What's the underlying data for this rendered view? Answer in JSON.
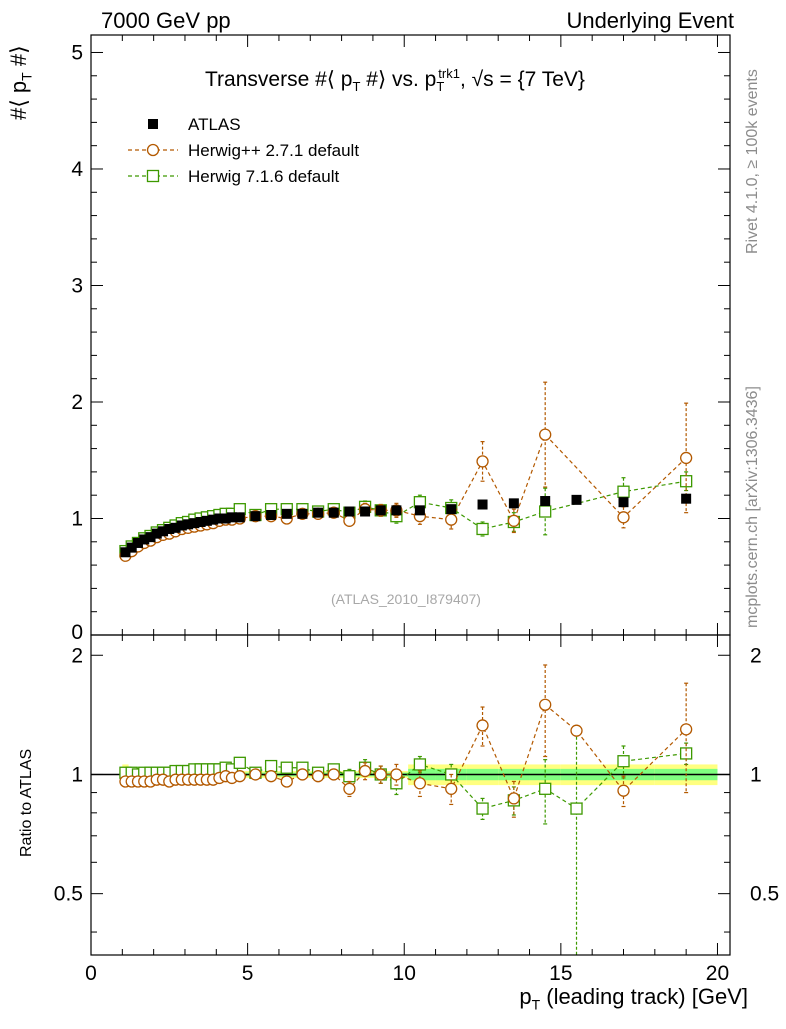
{
  "header": {
    "left": "7000 GeV pp",
    "right": "Underlying Event"
  },
  "side_text": {
    "rivet": "Rivet 4.1.0, ≥ 100k events",
    "mcplots": "mcplots.cern.ch [arXiv:1306.3436]"
  },
  "colors": {
    "atlas": "#000000",
    "herwigpp": "#b35900",
    "herwig7": "#3d9900",
    "band_inner": "#80ff80",
    "band_outer": "#ffff80"
  },
  "chart_data": {
    "type": "scatter",
    "title": "Transverse #⟨ p_T #⟩ vs. p_T^trk1, √s = {7 TeV}",
    "watermark": "(ATLAS_2010_I879407)",
    "xlabel": "p_T (leading track) [GeV]",
    "ylabel": "#⟨ p_T #⟩",
    "ratio_ylabel": "Ratio to ATLAS",
    "xlim": [
      0,
      20.4
    ],
    "ylim": [
      0,
      5.15
    ],
    "ratio_ylim": [
      0.35,
      2.25
    ],
    "xticks": [
      0,
      5,
      10,
      15,
      20
    ],
    "yticks": [
      1,
      2,
      3,
      4,
      5
    ],
    "ratio_yticks": [
      0.5,
      1,
      2
    ],
    "x": [
      1.1,
      1.3,
      1.5,
      1.7,
      1.9,
      2.1,
      2.3,
      2.5,
      2.7,
      2.9,
      3.1,
      3.3,
      3.5,
      3.7,
      3.9,
      4.1,
      4.3,
      4.5,
      4.75,
      5.25,
      5.75,
      6.25,
      6.75,
      7.25,
      7.75,
      8.25,
      8.75,
      9.25,
      9.75,
      10.5,
      11.5,
      12.5,
      13.5,
      14.5,
      15.5,
      17.0,
      19.0
    ],
    "series": [
      {
        "name": "ATLAS",
        "marker": "filled-square",
        "values": [
          0.71,
          0.75,
          0.79,
          0.82,
          0.84,
          0.87,
          0.89,
          0.91,
          0.92,
          0.94,
          0.95,
          0.96,
          0.97,
          0.98,
          0.99,
          1.0,
          1.0,
          1.01,
          1.01,
          1.02,
          1.03,
          1.04,
          1.04,
          1.05,
          1.05,
          1.06,
          1.06,
          1.07,
          1.07,
          1.07,
          1.08,
          1.12,
          1.13,
          1.15,
          1.16,
          1.14,
          1.17
        ],
        "errors": [
          0.01,
          0.01,
          0.01,
          0.01,
          0.01,
          0.01,
          0.01,
          0.01,
          0.01,
          0.01,
          0.01,
          0.01,
          0.01,
          0.01,
          0.01,
          0.01,
          0.01,
          0.01,
          0.01,
          0.01,
          0.01,
          0.01,
          0.01,
          0.01,
          0.01,
          0.01,
          0.01,
          0.01,
          0.01,
          0.01,
          0.01,
          0.01,
          0.01,
          0.01,
          0.01,
          0.01,
          0.01
        ]
      },
      {
        "name": "Herwig++ 2.7.1 default",
        "marker": "open-circle",
        "values": [
          0.68,
          0.72,
          0.76,
          0.79,
          0.81,
          0.84,
          0.86,
          0.87,
          0.89,
          0.91,
          0.92,
          0.93,
          0.94,
          0.95,
          0.96,
          0.98,
          0.99,
          0.99,
          1.0,
          1.02,
          1.02,
          1.0,
          1.04,
          1.04,
          1.05,
          0.98,
          1.08,
          1.07,
          1.07,
          1.02,
          0.99,
          1.49,
          0.98,
          1.72,
          null,
          1.01,
          1.52
        ],
        "errors": [
          0.01,
          0.01,
          0.01,
          0.01,
          0.01,
          0.01,
          0.01,
          0.01,
          0.01,
          0.01,
          0.01,
          0.01,
          0.01,
          0.01,
          0.01,
          0.01,
          0.01,
          0.01,
          0.02,
          0.02,
          0.02,
          0.02,
          0.03,
          0.03,
          0.03,
          0.04,
          0.05,
          0.05,
          0.06,
          0.07,
          0.08,
          0.17,
          0.1,
          0.45,
          null,
          0.09,
          0.47
        ],
        "ratio": [
          0.96,
          0.96,
          0.96,
          0.96,
          0.96,
          0.97,
          0.97,
          0.96,
          0.97,
          0.97,
          0.97,
          0.97,
          0.97,
          0.97,
          0.97,
          0.98,
          0.99,
          0.98,
          0.99,
          1.0,
          0.99,
          0.96,
          1.0,
          0.99,
          1.0,
          0.92,
          1.02,
          1.0,
          1.0,
          0.95,
          0.92,
          1.33,
          0.87,
          1.5,
          1.29,
          0.91,
          1.3
        ],
        "ratio_errors": [
          0.01,
          0.01,
          0.01,
          0.01,
          0.01,
          0.01,
          0.01,
          0.01,
          0.01,
          0.01,
          0.01,
          0.01,
          0.01,
          0.01,
          0.01,
          0.01,
          0.01,
          0.01,
          0.02,
          0.02,
          0.02,
          0.02,
          0.03,
          0.03,
          0.03,
          0.04,
          0.05,
          0.05,
          0.06,
          0.07,
          0.08,
          0.15,
          0.09,
          0.39,
          null,
          0.08,
          0.4
        ]
      },
      {
        "name": "Herwig 7.1.6 default",
        "marker": "open-square",
        "values": [
          0.72,
          0.76,
          0.79,
          0.83,
          0.85,
          0.88,
          0.9,
          0.92,
          0.94,
          0.96,
          0.97,
          0.99,
          1.0,
          1.01,
          1.02,
          1.03,
          1.04,
          1.04,
          1.08,
          1.03,
          1.08,
          1.08,
          1.08,
          1.06,
          1.08,
          1.05,
          1.1,
          1.07,
          1.02,
          1.14,
          1.09,
          0.91,
          0.97,
          1.06,
          null,
          1.23,
          1.32
        ],
        "errors": [
          0.01,
          0.01,
          0.01,
          0.01,
          0.01,
          0.01,
          0.01,
          0.01,
          0.01,
          0.01,
          0.01,
          0.01,
          0.01,
          0.01,
          0.01,
          0.01,
          0.01,
          0.01,
          0.02,
          0.02,
          0.02,
          0.02,
          0.02,
          0.03,
          0.03,
          0.04,
          0.05,
          0.05,
          0.06,
          0.06,
          0.07,
          0.06,
          0.08,
          0.2,
          null,
          0.12,
          0.08
        ],
        "ratio": [
          1.01,
          1.01,
          1.0,
          1.01,
          1.01,
          1.01,
          1.01,
          1.01,
          1.02,
          1.02,
          1.02,
          1.03,
          1.03,
          1.03,
          1.03,
          1.03,
          1.04,
          1.03,
          1.07,
          1.01,
          1.05,
          1.04,
          1.04,
          1.01,
          1.03,
          0.99,
          1.04,
          1.0,
          0.95,
          1.06,
          1.0,
          0.82,
          0.86,
          0.92,
          0.82,
          1.08,
          1.13
        ],
        "ratio_errors": [
          0.01,
          0.01,
          0.01,
          0.01,
          0.01,
          0.01,
          0.01,
          0.01,
          0.01,
          0.01,
          0.01,
          0.01,
          0.01,
          0.01,
          0.01,
          0.01,
          0.01,
          0.01,
          0.02,
          0.02,
          0.02,
          0.02,
          0.02,
          0.03,
          0.03,
          0.04,
          0.05,
          0.05,
          0.06,
          0.05,
          0.06,
          0.05,
          0.07,
          0.17,
          0.5,
          0.1,
          0.07
        ]
      }
    ]
  }
}
